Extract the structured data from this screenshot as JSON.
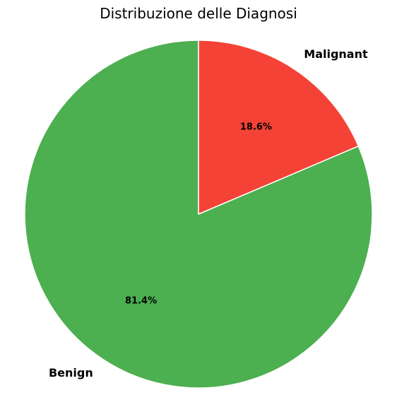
{
  "chart_data": {
    "type": "pie",
    "title": "Distribuzione delle Diagnosi",
    "categories": [
      "Benign",
      "Malignant"
    ],
    "values": [
      81.4,
      18.6
    ],
    "value_labels": [
      "81.4%",
      "18.6%"
    ],
    "colors": [
      "#4caf50",
      "#f44336"
    ],
    "start_angle": "90 degrees (12 o'clock), counter-clockwise",
    "edge_color": "#ffffff",
    "legend": "none"
  }
}
